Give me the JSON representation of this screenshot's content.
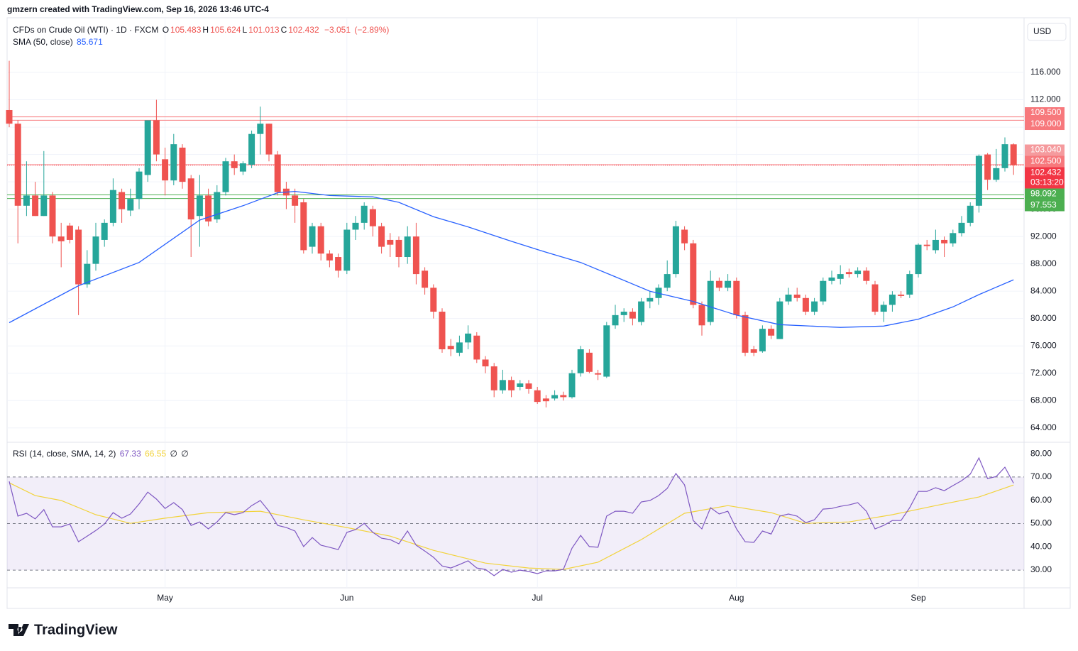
{
  "header": {
    "credit": "gmzern created with TradingView.com, Sep 16, 2026 13:46 UTC-4"
  },
  "brand": "TradingView",
  "chart_data": {
    "type": "candlestick",
    "symbol": "CFDs on Crude Oil (WTI) · 1D · FXCM",
    "ohlc_keys": [
      "O",
      "H",
      "L",
      "C"
    ],
    "change": {
      "value": -3.051,
      "label": "−3.051"
    },
    "change_pct": {
      "value": -2.89,
      "label": "(−2.89%)"
    },
    "currency": "USD",
    "up_color": "#26a69a",
    "down_color": "#ef5350",
    "categories": [
      null,
      null,
      null,
      null,
      null,
      null,
      null,
      null,
      null,
      null,
      null,
      null,
      null,
      null,
      null,
      null,
      null,
      null,
      "May",
      null,
      null,
      null,
      null,
      null,
      null,
      null,
      null,
      null,
      null,
      null,
      null,
      null,
      null,
      null,
      null,
      null,
      null,
      null,
      null,
      "Jun",
      null,
      null,
      null,
      null,
      null,
      null,
      null,
      null,
      null,
      null,
      null,
      null,
      null,
      null,
      null,
      null,
      null,
      null,
      null,
      null,
      null,
      "Jul",
      null,
      null,
      null,
      null,
      null,
      null,
      null,
      null,
      null,
      null,
      null,
      null,
      null,
      null,
      null,
      null,
      null,
      null,
      null,
      null,
      null,
      null,
      "Aug",
      null,
      null,
      null,
      null,
      null,
      null,
      null,
      null,
      null,
      null,
      null,
      null,
      null,
      null,
      null,
      null,
      null,
      null,
      null,
      null,
      "Sep",
      null,
      null,
      null,
      null,
      null,
      null,
      null,
      null,
      null,
      null,
      null
    ],
    "open": [
      110.5,
      108.5,
      96.5,
      98,
      95,
      98,
      92,
      93.6,
      93,
      85,
      88,
      91.5,
      94,
      98.5,
      95.8,
      97.5,
      101,
      109,
      103.3,
      100.2,
      105,
      100.5,
      95,
      98,
      94.5,
      98.5,
      103,
      101.5,
      102.5,
      107,
      108.5,
      104,
      99,
      98,
      97,
      90.5,
      93.5,
      89.5,
      89,
      87,
      93,
      94,
      96,
      93.5,
      91.5,
      91.5,
      89,
      92,
      87,
      84.5,
      81,
      76,
      75,
      76.5,
      77.5,
      74,
      73,
      69.5,
      71,
      70,
      70.5,
      69.5,
      68.3,
      68.3,
      68.8,
      68.5,
      72,
      75,
      72,
      71.5,
      79,
      80.5,
      81,
      79.5,
      82.5,
      83,
      84.5,
      86.5,
      93,
      91,
      82,
      79.5,
      85.5,
      84.5,
      85.5,
      80.5,
      75.5,
      75.2,
      78.5,
      77,
      82.5,
      83.5,
      83,
      81,
      82.5,
      85.5,
      85.8,
      86.8,
      86.5,
      87,
      85,
      81,
      82,
      83.5,
      83.5,
      86.5,
      90.8,
      90,
      91.5,
      91,
      92.5,
      94,
      96.5,
      104,
      100.3,
      102,
      105.483
    ],
    "high": [
      117.7,
      109,
      103,
      100,
      104.5,
      98.5,
      94,
      94,
      93.5,
      90,
      94,
      94.5,
      100.5,
      99,
      99,
      102,
      109,
      112,
      105,
      107,
      105.5,
      101,
      101,
      99,
      99.5,
      103.5,
      104,
      103,
      107.5,
      111,
      108.5,
      104.5,
      100,
      99,
      97.5,
      94,
      94,
      90,
      89.5,
      94,
      95,
      97,
      96.5,
      94,
      92.5,
      92,
      93.5,
      94,
      87.5,
      85,
      81.5,
      77,
      77.5,
      79,
      78,
      74.5,
      73.5,
      72.5,
      71.5,
      71,
      71,
      70,
      68.8,
      69.5,
      69.3,
      72.5,
      76,
      75.5,
      72.5,
      79.5,
      82,
      81.5,
      81.5,
      83,
      84,
      85,
      88.5,
      94.3,
      93.5,
      91.5,
      82.5,
      87,
      86,
      86.5,
      86,
      81,
      76,
      79,
      79,
      83,
      84.5,
      84.5,
      83.5,
      83,
      86,
      87,
      87.8,
      87.3,
      87.5,
      87.5,
      85.5,
      82.5,
      84,
      84,
      87,
      91,
      91.5,
      93,
      92,
      93,
      95,
      97,
      104,
      104.2,
      104.8,
      106.5,
      105.624
    ],
    "low": [
      108,
      91,
      95,
      95,
      95,
      91,
      87.5,
      91,
      80.5,
      84.5,
      87,
      90.5,
      93.5,
      94,
      95,
      96,
      100,
      103,
      98,
      99.5,
      99,
      89,
      90.5,
      93.5,
      94,
      98,
      101,
      101,
      102,
      104,
      103,
      98,
      96,
      94,
      89.5,
      89.5,
      88.5,
      87.5,
      86,
      86.5,
      91.5,
      93,
      92,
      89.5,
      89,
      87.5,
      88,
      85,
      83.5,
      80,
      75,
      74.5,
      74.5,
      75.5,
      73.5,
      72,
      68.5,
      69,
      68.5,
      69.5,
      69,
      67.5,
      67,
      68,
      68,
      68.3,
      71.5,
      72,
      71,
      71.3,
      78.5,
      79.5,
      79,
      79,
      81.5,
      82,
      84,
      86,
      90,
      81.5,
      77.5,
      79,
      84,
      84,
      80,
      74.5,
      74.5,
      75,
      77,
      77,
      82,
      82.5,
      80.5,
      80.5,
      82,
      85,
      85,
      86,
      86,
      85,
      80.5,
      79.5,
      81,
      83,
      83,
      86,
      90,
      89.5,
      89,
      90.5,
      92,
      93.5,
      95.5,
      98.8,
      100,
      101.5,
      101.013
    ],
    "close": [
      108.5,
      96.5,
      98,
      95,
      98,
      92,
      91.3,
      91.5,
      85,
      88,
      92,
      94,
      98.8,
      96,
      97.5,
      101.5,
      109,
      104,
      100.2,
      105.5,
      100,
      94.5,
      98,
      94.2,
      98.5,
      103,
      102,
      102.7,
      107,
      108.5,
      104,
      98.5,
      98,
      96.5,
      90,
      93.5,
      89.5,
      88.5,
      87,
      93,
      94,
      96.5,
      93.5,
      90.5,
      90.8,
      89,
      92,
      86.5,
      84.5,
      81,
      75.5,
      75.5,
      76.5,
      77.8,
      74,
      73,
      69.5,
      71,
      69.5,
      70.5,
      69.7,
      67.8,
      67.9,
      68.8,
      68.5,
      72,
      75.5,
      72.2,
      71.8,
      79,
      80.5,
      81,
      80,
      82.5,
      83,
      84.5,
      86.5,
      93.5,
      91,
      82,
      79,
      85.5,
      84.5,
      85.5,
      80.5,
      75,
      75,
      78.5,
      77.5,
      82.5,
      83.5,
      83,
      81,
      82.5,
      85.5,
      86,
      86.5,
      86.5,
      87,
      85.5,
      81,
      82,
      83.5,
      83.3,
      86.5,
      90.8,
      90.6,
      91.5,
      91,
      92.5,
      94,
      96.5,
      103.8,
      100.3,
      102,
      105.5,
      102.432
    ],
    "ylim": [
      62,
      124
    ],
    "yticks": [
      {
        "value": 64,
        "label": "64.000"
      },
      {
        "value": 68,
        "label": "68.000"
      },
      {
        "value": 72,
        "label": "72.000"
      },
      {
        "value": 76,
        "label": "76.000"
      },
      {
        "value": 80,
        "label": "80.000"
      },
      {
        "value": 84,
        "label": "84.000"
      },
      {
        "value": 88,
        "label": "88.000"
      },
      {
        "value": 92,
        "label": "92.000"
      },
      {
        "value": 96,
        "label": "96.000"
      },
      {
        "value": 100,
        "label": "100.000"
      },
      {
        "value": 104,
        "label": "104.000"
      },
      {
        "value": 108,
        "label": "108.000"
      },
      {
        "value": 112,
        "label": "112.000"
      },
      {
        "value": 116,
        "label": "116.000"
      }
    ],
    "grid": true,
    "levels": [
      {
        "value": 109.5,
        "label": "109.500",
        "color": "#f7787c",
        "line": true
      },
      {
        "value": 109,
        "label": "109.000",
        "color": "#f7787c",
        "line": true
      },
      {
        "value": 103.04,
        "label": "103.040",
        "color": "#f59a9d",
        "line": false
      },
      {
        "value": 102.5,
        "label": "102.500",
        "color": "#f7787c",
        "line": true
      },
      {
        "value": 98.092,
        "label": "98.092",
        "color": "#4caf50",
        "line": true
      },
      {
        "value": 97.553,
        "label": "97.553",
        "color": "#4caf50",
        "line": true
      }
    ],
    "current_color": "#f23645",
    "countdown": "03:13:20",
    "sma": {
      "name": "SMA (50, close)",
      "color": "#2962ff",
      "x": [
        0,
        8,
        15,
        22,
        27,
        31,
        33,
        37,
        42,
        45,
        49,
        53,
        58,
        62,
        66,
        70,
        74,
        79,
        84,
        89,
        96,
        101,
        105,
        109,
        112,
        116
      ],
      "values": [
        79.4,
        84.8,
        88.2,
        94.4,
        96.5,
        98.4,
        98.6,
        98,
        97.8,
        97,
        94.9,
        93.4,
        91.3,
        89.7,
        88.2,
        86.1,
        84,
        82.5,
        80.5,
        79.1,
        78.7,
        78.9,
        79.9,
        81.7,
        83.5,
        85.671
      ]
    },
    "rsi": {
      "type": "line",
      "name": "RSI (14, close, SMA, 14, 2)",
      "color": "#7e57c2",
      "values": [
        68.1,
        53.2,
        54.4,
        52,
        56,
        48.6,
        48.6,
        49.8,
        42.2,
        44.6,
        47,
        49.8,
        54.7,
        52.3,
        54.1,
        58.4,
        63.5,
        60.5,
        56.5,
        59,
        56,
        49.2,
        50.7,
        47.7,
        50.7,
        54.7,
        53.8,
        54.7,
        57.7,
        59.9,
        55.3,
        49.2,
        48.3,
        46.8,
        40.1,
        44,
        40.7,
        39.8,
        38.8,
        46.2,
        47.4,
        50.1,
        46.2,
        43.7,
        43.1,
        41.3,
        46.8,
        40.7,
        38.2,
        35.5,
        31.8,
        30.9,
        32.4,
        34,
        30.9,
        30.3,
        27.6,
        30.3,
        29.1,
        30,
        29.4,
        28.5,
        29.7,
        29.7,
        30.3,
        39.4,
        44.9,
        40.1,
        39.8,
        53.2,
        55.3,
        55.3,
        54.4,
        59.3,
        59.9,
        62,
        65.1,
        71.5,
        66.6,
        51.3,
        47.7,
        56.8,
        54.1,
        55.3,
        47.7,
        42.2,
        41.9,
        46.8,
        45.5,
        53.2,
        54.1,
        53.2,
        50.4,
        51.6,
        56.2,
        56.5,
        57.4,
        58,
        59,
        55.3,
        47.7,
        49.2,
        51.3,
        51.3,
        56.8,
        63.8,
        63.8,
        65.4,
        64.1,
        66.3,
        68.4,
        71.2,
        78.2,
        69.3,
        70.2,
        74.2,
        67.33
      ],
      "ylim": [
        22.4,
        84.6
      ],
      "yticks": [
        {
          "value": 30,
          "label": "30.00"
        },
        {
          "value": 40,
          "label": "40.00"
        },
        {
          "value": 50,
          "label": "50.00"
        },
        {
          "value": 60,
          "label": "60.00"
        },
        {
          "value": 70,
          "label": "70.00"
        },
        {
          "value": 80,
          "label": "80.00"
        }
      ],
      "band": [
        30,
        70
      ],
      "midline": 50,
      "sma": {
        "color": "#f2d33c",
        "x": [
          0,
          3,
          6,
          10,
          14,
          18,
          23,
          29,
          34,
          39,
          44,
          49,
          55,
          60,
          64,
          68,
          73,
          78,
          83,
          88,
          92,
          97,
          102,
          107,
          112,
          116
        ],
        "values": [
          67.5,
          62,
          59.9,
          53.8,
          50.1,
          52.3,
          54.7,
          55.3,
          51.6,
          48.3,
          44.6,
          38.5,
          33,
          30.9,
          30.3,
          33.4,
          43.1,
          54.4,
          57.7,
          54.7,
          50.1,
          50.7,
          53.8,
          57.7,
          61.4,
          66.55
        ]
      },
      "extras": [
        "∅",
        "∅"
      ]
    }
  }
}
